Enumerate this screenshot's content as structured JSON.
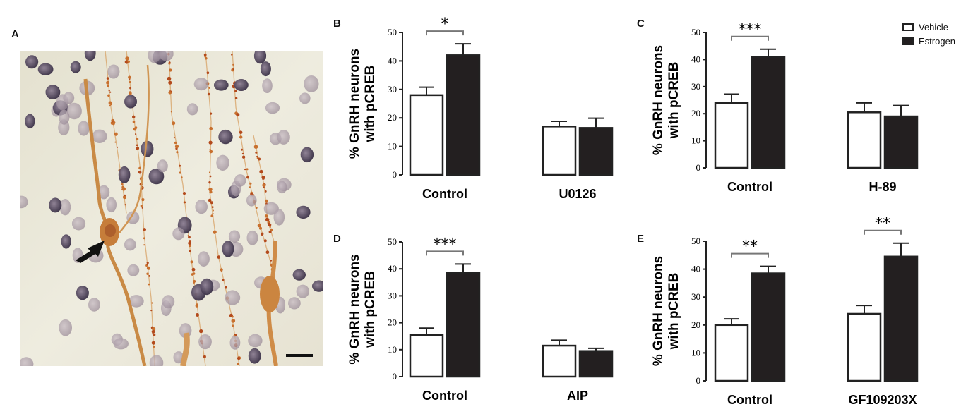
{
  "panels": {
    "a": "A",
    "b": "B",
    "c": "C",
    "d": "D",
    "e": "E"
  },
  "legend": {
    "vehicle": "Vehicle",
    "estrogen": "Estrogen"
  },
  "colors": {
    "vehicle_fill": "#ffffff",
    "estrogen_fill": "#231f20",
    "stroke": "#222222",
    "bracket_gray": "#777777"
  },
  "image_content": "micrograph-tissue",
  "chart_data": [
    {
      "panel": "B",
      "type": "bar",
      "ylabel": [
        "% GnRH neurons",
        "with pCREB"
      ],
      "ylim": [
        0,
        50
      ],
      "yticks": [
        0,
        10,
        20,
        30,
        40,
        50
      ],
      "categories": [
        "Control",
        "U0126"
      ],
      "series": [
        {
          "name": "Vehicle",
          "values": [
            28,
            17
          ],
          "errors": [
            2.8,
            1.8
          ]
        },
        {
          "name": "Estrogen",
          "values": [
            42,
            16.5
          ],
          "errors": [
            4,
            3.4
          ]
        }
      ],
      "significance": [
        {
          "category": "Control",
          "label": "*"
        }
      ]
    },
    {
      "panel": "C",
      "type": "bar",
      "ylabel": [
        "% GnRH neurons",
        "with pCREB"
      ],
      "ylim": [
        0,
        50
      ],
      "yticks": [
        0,
        10,
        20,
        30,
        40,
        50
      ],
      "categories": [
        "Control",
        "H-89"
      ],
      "series": [
        {
          "name": "Vehicle",
          "values": [
            24,
            20.5
          ],
          "errors": [
            3.2,
            3.5
          ]
        },
        {
          "name": "Estrogen",
          "values": [
            41,
            19
          ],
          "errors": [
            2.8,
            4
          ]
        }
      ],
      "significance": [
        {
          "category": "Control",
          "label": "***"
        }
      ]
    },
    {
      "panel": "D",
      "type": "bar",
      "ylabel": [
        "% GnRH neurons",
        "with pCREB"
      ],
      "ylim": [
        0,
        50
      ],
      "yticks": [
        0,
        10,
        20,
        30,
        40,
        50
      ],
      "categories": [
        "Control",
        "AIP"
      ],
      "series": [
        {
          "name": "Vehicle",
          "values": [
            15.5,
            11.5
          ],
          "errors": [
            2.5,
            2
          ]
        },
        {
          "name": "Estrogen",
          "values": [
            38.5,
            9.5
          ],
          "errors": [
            3.3,
            1
          ]
        }
      ],
      "significance": [
        {
          "category": "Control",
          "label": "***"
        }
      ]
    },
    {
      "panel": "E",
      "type": "bar",
      "ylabel": [
        "% GnRH neurons",
        "with pCREB"
      ],
      "ylim": [
        0,
        50
      ],
      "yticks": [
        0,
        10,
        20,
        30,
        40,
        50
      ],
      "categories": [
        "Control",
        "GF109203X"
      ],
      "series": [
        {
          "name": "Vehicle",
          "values": [
            20,
            24
          ],
          "errors": [
            2.2,
            3
          ]
        },
        {
          "name": "Estrogen",
          "values": [
            38.5,
            44.5
          ],
          "errors": [
            2.5,
            4.8
          ]
        }
      ],
      "significance": [
        {
          "category": "Control",
          "label": "**"
        },
        {
          "category": "GF109203X",
          "label": "**"
        }
      ]
    }
  ]
}
